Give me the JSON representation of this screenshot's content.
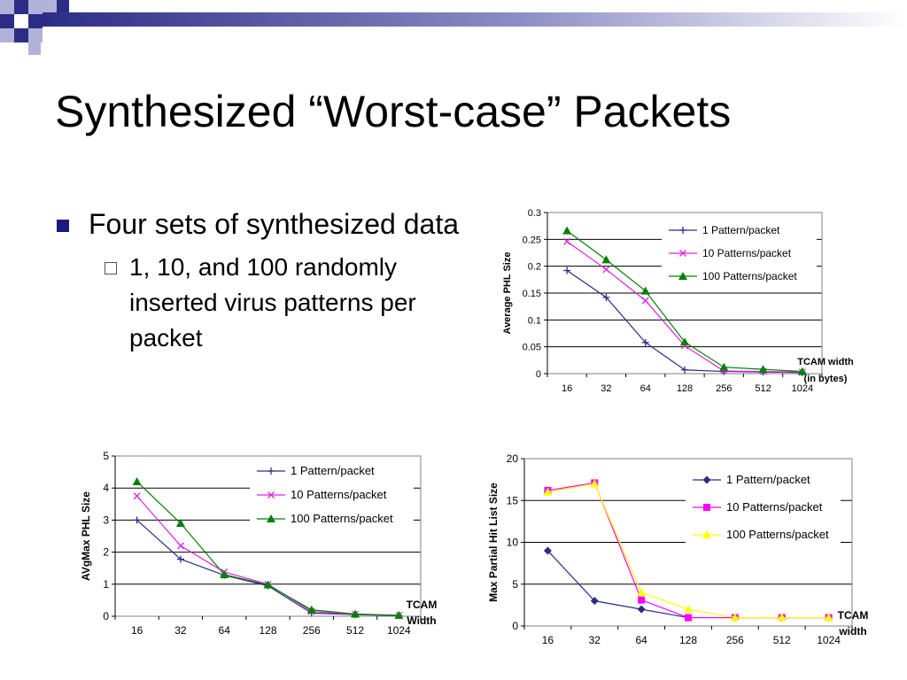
{
  "slide": {
    "title": "Synthesized “Worst-case” Packets",
    "bullet": "Four sets of synthesized data",
    "sub_bullet": "1, 10, and 100 randomly inserted virus patterns per packet"
  },
  "colors": {
    "deco_dark": "#2b2c86",
    "deco_light": "#b1b2d8"
  },
  "chart_data": [
    {
      "id": "top",
      "type": "line",
      "categories": [
        "16",
        "32",
        "64",
        "128",
        "256",
        "512",
        "1024"
      ],
      "ylim": [
        0,
        0.3
      ],
      "yticks": [
        0,
        0.05,
        0.1,
        0.15,
        0.2,
        0.25,
        0.3
      ],
      "ytick_labels": [
        "0",
        "0.05",
        "0.1",
        "0.15",
        "0.2",
        "0.25",
        "0.3"
      ],
      "ylabel": "Average PHL Size",
      "xlabel": [
        "TCAM width",
        "(in bytes)"
      ],
      "grid": true,
      "legend": "top-right",
      "series": [
        {
          "name": "1 Pattern/packet",
          "color": "#2b2c86",
          "marker": "plus",
          "values": [
            0.192,
            0.142,
            0.058,
            0.007,
            0.004,
            0.003,
            0.002
          ]
        },
        {
          "name": "10 Patterns/packet",
          "color": "#e020e0",
          "marker": "x",
          "values": [
            0.246,
            0.194,
            0.136,
            0.052,
            0.005,
            0.004,
            0.003
          ]
        },
        {
          "name": "100 Patterns/packet",
          "color": "#008000",
          "marker": "triangle",
          "values": [
            0.266,
            0.212,
            0.154,
            0.059,
            0.012,
            0.008,
            0.004
          ]
        }
      ]
    },
    {
      "id": "bl",
      "type": "line",
      "categories": [
        "16",
        "32",
        "64",
        "128",
        "256",
        "512",
        "1024"
      ],
      "ylim": [
        0,
        5
      ],
      "yticks": [
        0,
        1,
        2,
        3,
        4,
        5
      ],
      "ytick_labels": [
        "0",
        "1",
        "2",
        "3",
        "4",
        "5"
      ],
      "ylabel": "AVgMax PHL Size",
      "xlabel": [
        "TCAM",
        "Width"
      ],
      "grid": true,
      "legend": "top-right",
      "series": [
        {
          "name": "1 Pattern/packet",
          "color": "#2b2c86",
          "marker": "plus",
          "values": [
            3.0,
            1.78,
            1.28,
            0.95,
            0.1,
            0.05,
            0.02
          ]
        },
        {
          "name": "10 Patterns/packet",
          "color": "#e020e0",
          "marker": "x",
          "values": [
            3.75,
            2.2,
            1.38,
            1.0,
            0.15,
            0.06,
            0.03
          ]
        },
        {
          "name": "100 Patterns/packet",
          "color": "#008000",
          "marker": "triangle",
          "values": [
            4.2,
            2.9,
            1.3,
            0.98,
            0.2,
            0.07,
            0.03
          ]
        }
      ]
    },
    {
      "id": "br",
      "type": "line",
      "categories": [
        "16",
        "32",
        "64",
        "128",
        "256",
        "512",
        "1024"
      ],
      "ylim": [
        0,
        20
      ],
      "yticks": [
        0,
        5,
        10,
        15,
        20
      ],
      "ytick_labels": [
        "0",
        "5",
        "10",
        "15",
        "20"
      ],
      "ylabel": "Max Partial Hit List Size",
      "xlabel": [
        "TCAM",
        "width"
      ],
      "grid": true,
      "legend": "top-right",
      "series": [
        {
          "name": "1 Pattern/packet",
          "color": "#2b2c86",
          "marker": "diamond",
          "values": [
            9,
            3,
            2,
            1,
            1,
            1,
            1
          ]
        },
        {
          "name": "10 Patterns/packet",
          "color": "#ff00ff",
          "marker": "square",
          "values": [
            16.2,
            17.1,
            3.1,
            1.0,
            1.0,
            1.0,
            1.0
          ]
        },
        {
          "name": "100 Patterns/packet",
          "color": "#ffff00",
          "marker": "triangle",
          "values": [
            16.0,
            17.0,
            4.0,
            2.0,
            1.0,
            1.0,
            1.0
          ]
        }
      ]
    }
  ]
}
